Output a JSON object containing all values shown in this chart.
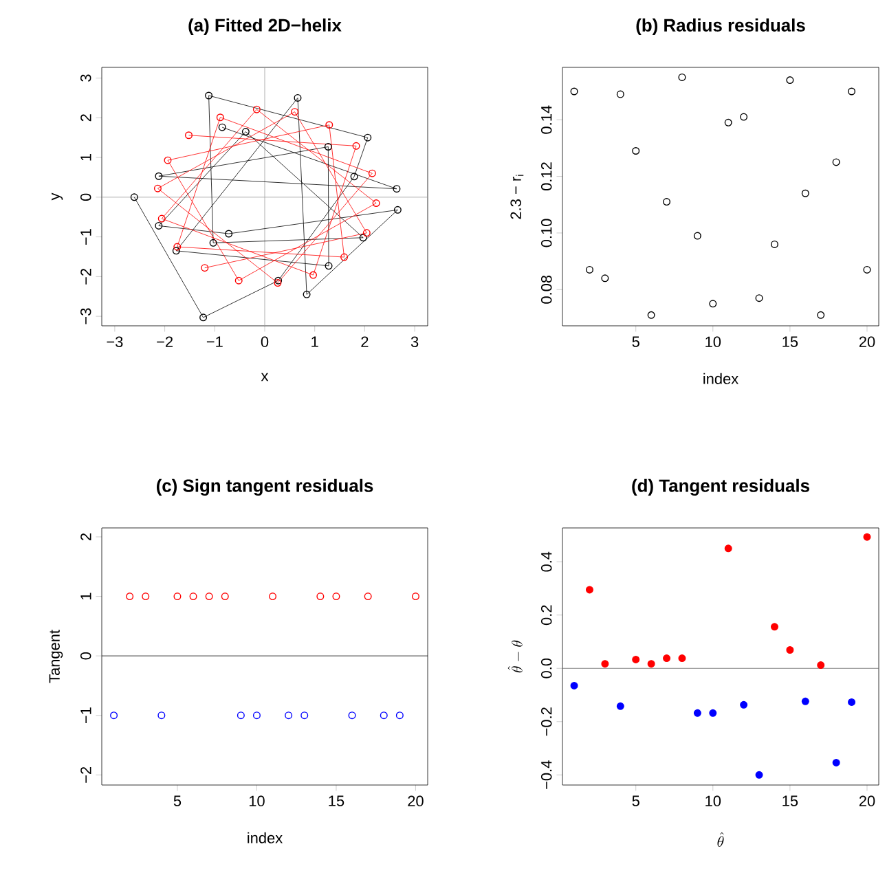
{
  "chart_data": [
    {
      "type": "line",
      "title": "(a) Fitted 2D−helix",
      "xlabel": "x",
      "ylabel": "y",
      "xlim": [
        -3.26,
        3.26
      ],
      "ylim": [
        -3.24,
        3.27
      ],
      "xticks": [
        {
          "value": -3,
          "label": "−3"
        },
        {
          "value": -2,
          "label": "−2"
        },
        {
          "value": -1,
          "label": "−1"
        },
        0,
        1,
        2,
        3
      ],
      "yticks": [
        {
          "value": -3,
          "label": "−3"
        },
        {
          "value": -2,
          "label": "−2"
        },
        {
          "value": -1,
          "label": "−1"
        },
        0,
        1,
        2,
        3
      ],
      "marker": "circle",
      "line_style": "solid",
      "ref_lines": [
        {
          "axis": "x",
          "value": 0,
          "color": "#999999"
        },
        {
          "axis": "y",
          "value": 0,
          "color": "#999999"
        }
      ],
      "series": [
        {
          "color": "#000000",
          "x": [
            -2.61,
            -1.23,
            0.27,
            1.79,
            2.06,
            -1.12,
            -1.03,
            1.97,
            -0.38,
            -2.12,
            -0.72,
            2.66,
            0.84,
            0.66,
            -1.77,
            1.28,
            1.27,
            -2.12,
            2.64,
            -0.85
          ],
          "values": [
            0.0,
            -3.03,
            -2.1,
            0.52,
            1.5,
            2.56,
            -1.15,
            -1.02,
            1.65,
            -0.72,
            -0.92,
            -0.32,
            -2.45,
            2.5,
            -1.35,
            -1.73,
            1.27,
            0.53,
            0.21,
            1.76
          ]
        },
        {
          "color": "#ff0000",
          "x": [
            -1.52,
            1.83,
            0.97,
            -2.06,
            -0.16,
            2.23,
            -0.52,
            -1.94,
            1.29,
            1.59,
            -1.75,
            -0.89,
            2.15,
            0.26,
            -2.14,
            0.6,
            2.04,
            -1.2
          ],
          "values": [
            1.56,
            1.29,
            -1.96,
            -0.54,
            2.21,
            -0.15,
            -2.1,
            0.93,
            1.82,
            -1.51,
            -1.25,
            2.01,
            0.6,
            -2.16,
            0.22,
            2.15,
            -0.9,
            -1.78
          ]
        }
      ]
    },
    {
      "type": "scatter",
      "title": "(b) Radius residuals",
      "xlabel": "index",
      "ylabel": "2.3 − r$_{i}$",
      "xlim": [
        0.24,
        20.76
      ],
      "ylim": [
        0.0672,
        0.1585
      ],
      "xticks": [
        5,
        10,
        15,
        20
      ],
      "yticks": [
        {
          "value": 0.08,
          "label": "0.08"
        },
        {
          "value": 0.1,
          "label": "0.10"
        },
        {
          "value": 0.12,
          "label": "0.12"
        },
        {
          "value": 0.14,
          "label": "0.14"
        }
      ],
      "marker": "circle",
      "series": [
        {
          "color": "#000000",
          "x": [
            1,
            2,
            3,
            4,
            5,
            6,
            7,
            8,
            9,
            10,
            11,
            12,
            13,
            14,
            15,
            16,
            17,
            18,
            19,
            20
          ],
          "values": [
            0.15,
            0.087,
            0.084,
            0.149,
            0.129,
            0.071,
            0.111,
            0.155,
            0.099,
            0.075,
            0.139,
            0.141,
            0.077,
            0.096,
            0.154,
            0.114,
            0.071,
            0.125,
            0.15,
            0.087
          ]
        }
      ]
    },
    {
      "type": "scatter",
      "title": "(c) Sign tangent residuals",
      "xlabel": "index",
      "ylabel": "Tangent",
      "xlim": [
        0.24,
        20.76
      ],
      "ylim": [
        -2.17,
        2.15
      ],
      "xticks": [
        5,
        10,
        15,
        20
      ],
      "yticks": [
        {
          "value": -2,
          "label": "−2"
        },
        {
          "value": -1,
          "label": "−1"
        },
        0,
        1,
        2
      ],
      "marker": "circle",
      "ref_lines": [
        {
          "axis": "y",
          "value": 0,
          "color": "#000000"
        }
      ],
      "series": [
        {
          "color": "#ff0000",
          "x": [
            2,
            3,
            5,
            6,
            7,
            8,
            11,
            14,
            15,
            17,
            20
          ],
          "values": [
            1,
            1,
            1,
            1,
            1,
            1,
            1,
            1,
            1,
            1,
            1
          ]
        },
        {
          "color": "#0000ff",
          "x": [
            1,
            4,
            9,
            10,
            12,
            13,
            16,
            18,
            19
          ],
          "values": [
            -1,
            -1,
            -1,
            -1,
            -1,
            -1,
            -1,
            -1,
            -1
          ]
        }
      ]
    },
    {
      "type": "scatter",
      "title": "(d) Tangent residuals",
      "xlabel": "\\hat{\\theta}",
      "ylabel": "\\hat{\\theta}-\\theta",
      "xlim": [
        0.24,
        20.76
      ],
      "ylim": [
        -0.438,
        0.527
      ],
      "xticks": [
        5,
        10,
        15,
        20
      ],
      "yticks": [
        {
          "value": -0.4,
          "label": "−0.4"
        },
        {
          "value": -0.2,
          "label": "−0.2"
        },
        {
          "value": 0,
          "label": "0.0"
        },
        {
          "value": 0.2,
          "label": "0.2"
        },
        {
          "value": 0.4,
          "label": "0.4"
        }
      ],
      "marker": "dot",
      "ref_lines": [
        {
          "axis": "y",
          "value": 0,
          "color": "#666666"
        }
      ],
      "series": [
        {
          "color": "#ff0000",
          "x": [
            2,
            3,
            5,
            6,
            7,
            8,
            11,
            14,
            15,
            17,
            20
          ],
          "values": [
            0.295,
            0.017,
            0.033,
            0.017,
            0.038,
            0.038,
            0.45,
            0.156,
            0.069,
            0.012,
            0.493
          ]
        },
        {
          "color": "#0000ff",
          "x": [
            1,
            4,
            9,
            10,
            12,
            13,
            16,
            18,
            19
          ],
          "values": [
            -0.065,
            -0.142,
            -0.168,
            -0.168,
            -0.137,
            -0.4,
            -0.124,
            -0.354,
            -0.127
          ]
        }
      ]
    }
  ]
}
